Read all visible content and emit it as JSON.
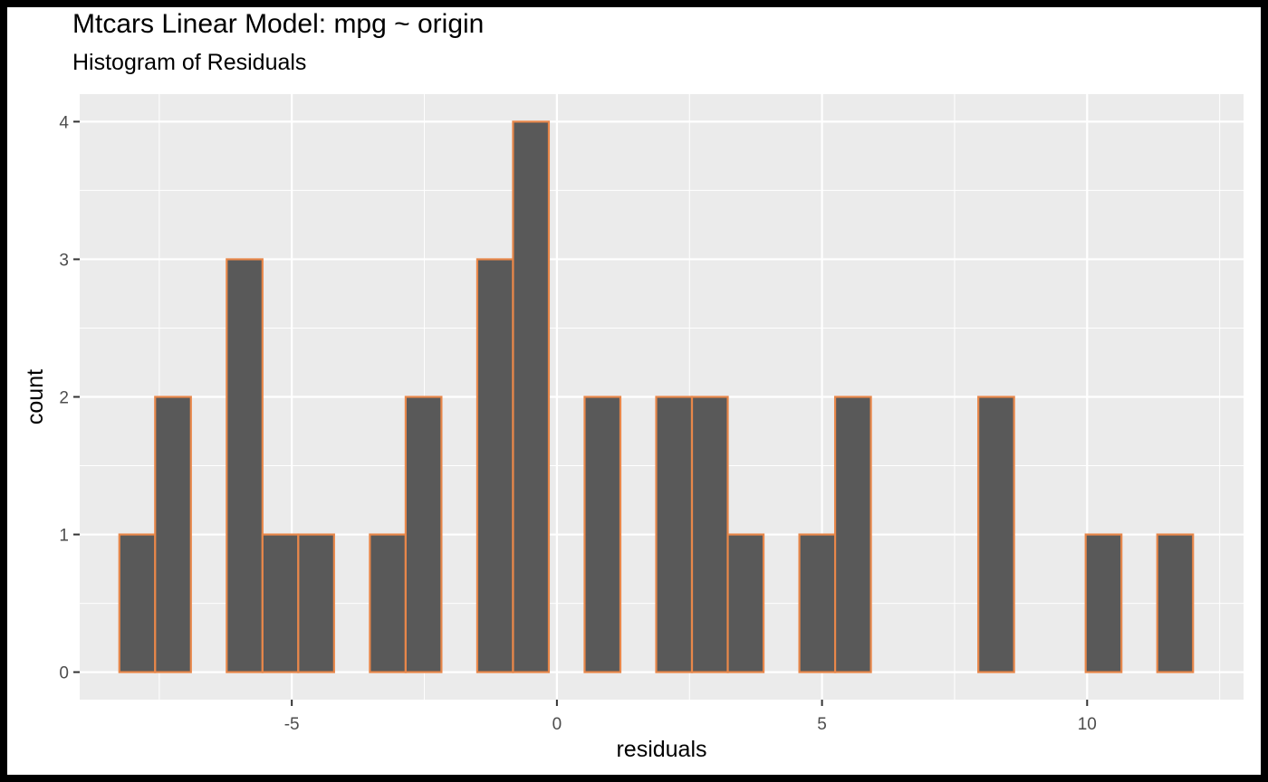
{
  "chart_data": {
    "type": "bar",
    "title": "Mtcars Linear Model: mpg ~ origin",
    "subtitle": "Histogram of Residuals",
    "xlabel": "residuals",
    "ylabel": "count",
    "binwidth": 0.675,
    "bins": [
      {
        "x": -7.915,
        "count": 1
      },
      {
        "x": -7.24,
        "count": 2
      },
      {
        "x": -6.565,
        "count": 0
      },
      {
        "x": -5.89,
        "count": 3
      },
      {
        "x": -5.215,
        "count": 1
      },
      {
        "x": -4.54,
        "count": 1
      },
      {
        "x": -3.865,
        "count": 0
      },
      {
        "x": -3.19,
        "count": 1
      },
      {
        "x": -2.515,
        "count": 2
      },
      {
        "x": -1.84,
        "count": 0
      },
      {
        "x": -1.165,
        "count": 3
      },
      {
        "x": -0.49,
        "count": 4
      },
      {
        "x": 0.185,
        "count": 0
      },
      {
        "x": 0.86,
        "count": 2
      },
      {
        "x": 1.535,
        "count": 0
      },
      {
        "x": 2.21,
        "count": 2
      },
      {
        "x": 2.885,
        "count": 2
      },
      {
        "x": 3.56,
        "count": 1
      },
      {
        "x": 4.235,
        "count": 0
      },
      {
        "x": 4.91,
        "count": 1
      },
      {
        "x": 5.585,
        "count": 2
      },
      {
        "x": 6.26,
        "count": 0
      },
      {
        "x": 6.935,
        "count": 0
      },
      {
        "x": 7.61,
        "count": 0
      },
      {
        "x": 8.285,
        "count": 2
      },
      {
        "x": 8.96,
        "count": 0
      },
      {
        "x": 9.635,
        "count": 0
      },
      {
        "x": 10.31,
        "count": 1
      },
      {
        "x": 10.985,
        "count": 0
      },
      {
        "x": 11.66,
        "count": 1
      }
    ],
    "xlim": [
      -9.0,
      12.95
    ],
    "ylim": [
      -0.2,
      4.2
    ],
    "x_ticks": [
      -5,
      0,
      5,
      10
    ],
    "x_tick_labels": [
      "-5",
      "0",
      "5",
      "10"
    ],
    "y_ticks": [
      0,
      1,
      2,
      3,
      4
    ],
    "y_tick_labels": [
      "0",
      "1",
      "2",
      "3",
      "4"
    ],
    "grid": true,
    "legend": "none",
    "colors": {
      "bar_fill": "#595959",
      "bar_outline": "#e8874a",
      "panel_background": "#ebebeb",
      "grid": "#ffffff"
    }
  }
}
